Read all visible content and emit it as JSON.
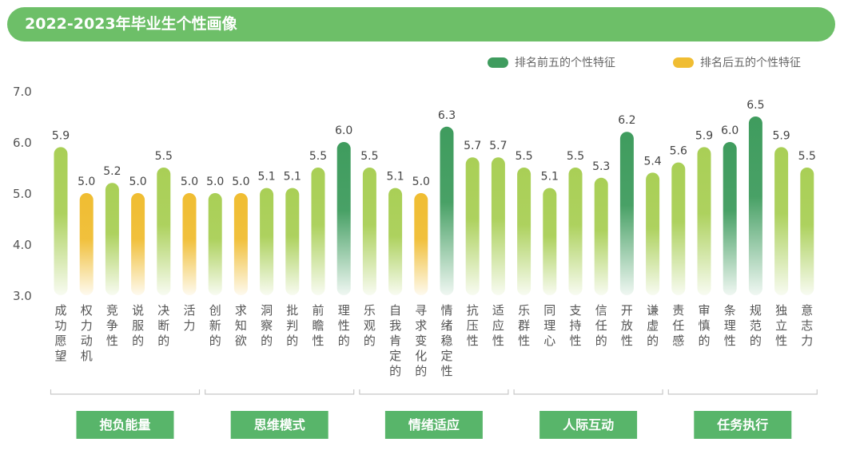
{
  "title": "2022-2023年毕业生个性画像",
  "legend": {
    "top": {
      "label": "排名前五的个性特征",
      "color": "#3f9c5e"
    },
    "bottom": {
      "label": "排名后五的个性特征",
      "color": "#f0bd32"
    }
  },
  "colors": {
    "normal": "#a9cf56",
    "top": "#3f9c5e",
    "bottom": "#f0bd32",
    "group": "#58b56a"
  },
  "chart_data": {
    "type": "bar",
    "ylim": [
      3.0,
      7.0
    ],
    "yticks": [
      "3.0",
      "4.0",
      "5.0",
      "6.0",
      "7.0"
    ],
    "grid": false,
    "legend_position": "top-right",
    "categories": [
      "成功愿望",
      "权力动机",
      "竞争性",
      "说服的",
      "决断的",
      "活力",
      "创新的",
      "求知欲",
      "洞察的",
      "批判的",
      "前瞻性",
      "理性的",
      "乐观的",
      "自我肯定的",
      "寻求变化的",
      "情绪稳定性",
      "抗压性",
      "适应性",
      "乐群性",
      "同理心",
      "支持性",
      "信任的",
      "开放性",
      "谦虚的",
      "责任感",
      "审慎的",
      "条理性",
      "规范的",
      "独立性",
      "意志力"
    ],
    "values": [
      5.9,
      5.0,
      5.2,
      5.0,
      5.5,
      5.0,
      5.0,
      5.0,
      5.1,
      5.1,
      5.5,
      6.0,
      5.5,
      5.1,
      5.0,
      6.3,
      5.7,
      5.7,
      5.5,
      5.1,
      5.5,
      5.3,
      6.2,
      5.4,
      5.6,
      5.9,
      6.0,
      6.5,
      5.9,
      5.5
    ],
    "value_labels": [
      "5.9",
      "5.0",
      "5.2",
      "5.0",
      "5.5",
      "5.0",
      "5.0",
      "5.0",
      "5.1",
      "5.1",
      "5.5",
      "6.0",
      "5.5",
      "5.1",
      "5.0",
      "6.3",
      "5.7",
      "5.7",
      "5.5",
      "5.1",
      "5.5",
      "5.3",
      "6.2",
      "5.4",
      "5.6",
      "5.9",
      "6.0",
      "6.5",
      "5.9",
      "5.5"
    ],
    "rank": [
      "normal",
      "bottom",
      "normal",
      "bottom",
      "normal",
      "bottom",
      "normal",
      "bottom",
      "normal",
      "normal",
      "normal",
      "top",
      "normal",
      "normal",
      "bottom",
      "top",
      "normal",
      "normal",
      "normal",
      "normal",
      "normal",
      "normal",
      "top",
      "normal",
      "normal",
      "normal",
      "top",
      "top",
      "normal",
      "normal"
    ],
    "groups": [
      {
        "name": "抱负能量",
        "count": 6
      },
      {
        "name": "思维模式",
        "count": 6
      },
      {
        "name": "情绪适应",
        "count": 6
      },
      {
        "name": "人际互动",
        "count": 6
      },
      {
        "name": "任务执行",
        "count": 6
      }
    ]
  }
}
